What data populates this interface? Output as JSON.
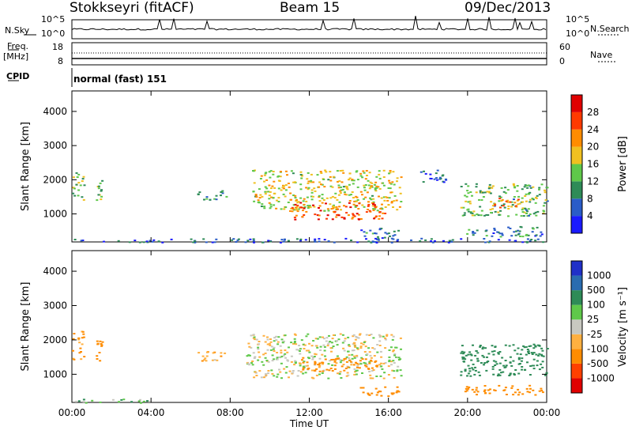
{
  "header": {
    "station": "Stokkseyri (fitACF)",
    "beam": "Beam 15",
    "date": "09/Dec/2013"
  },
  "summary": {
    "nsky_label": "N.Sky",
    "nsky_ticks": [
      "10^5",
      "10^0"
    ],
    "nsearch_label": "N.Search",
    "nsearch_ticks": [
      "10^5",
      "10^0"
    ],
    "freq_label": "Freq.",
    "freq_unit": "[MHz]",
    "freq_ticks": [
      "18",
      "8"
    ],
    "nave_label": "Nave",
    "nave_ticks": [
      "60",
      "0"
    ],
    "cpid_label": "CPID",
    "cpid_value": "normal (fast) 151"
  },
  "chart_data": [
    {
      "type": "heatmap",
      "title": "",
      "panel": "power",
      "xlabel": "",
      "ylabel": "Slant Range [km]",
      "x_ticks": [
        "00:00",
        "04:00",
        "08:00",
        "12:00",
        "16:00",
        "20:00",
        "00:00"
      ],
      "x_range_hours": [
        0,
        24
      ],
      "y_ticks": [
        1000,
        2000,
        3000,
        4000
      ],
      "ylim": [
        180,
        4600
      ],
      "colorbar": {
        "label": "Power [dB]",
        "ticks": [
          "4",
          "8",
          "12",
          "16",
          "20",
          "24",
          "28"
        ],
        "range": [
          0,
          30
        ],
        "colors": [
          "#1a1aff",
          "#2a5cc8",
          "#2e8b57",
          "#5fc84a",
          "#f0c020",
          "#ff8c00",
          "#ff3a00",
          "#e00000"
        ]
      },
      "regions": [
        {
          "t": [
            0.0,
            0.6
          ],
          "r": [
            1400,
            2300
          ],
          "level": 12
        },
        {
          "t": [
            1.2,
            1.5
          ],
          "r": [
            1400,
            2100
          ],
          "level": 14
        },
        {
          "t": [
            6.3,
            7.8
          ],
          "r": [
            1400,
            1700
          ],
          "level": 10
        },
        {
          "t": [
            9.1,
            16.6
          ],
          "r": [
            1100,
            2300
          ],
          "level": 16
        },
        {
          "t": [
            11.0,
            15.8
          ],
          "r": [
            850,
            1350
          ],
          "level": 24
        },
        {
          "t": [
            14.5,
            16.5
          ],
          "r": [
            300,
            600
          ],
          "level": 8
        },
        {
          "t": [
            17.6,
            19.0
          ],
          "r": [
            1900,
            2300
          ],
          "level": 6
        },
        {
          "t": [
            19.6,
            24.0
          ],
          "r": [
            950,
            1900
          ],
          "level": 12
        },
        {
          "t": [
            21.2,
            22.6
          ],
          "r": [
            1200,
            1500
          ],
          "level": 22
        },
        {
          "t": [
            19.8,
            23.8
          ],
          "r": [
            350,
            650
          ],
          "level": 8
        },
        {
          "t": [
            0.0,
            24.0
          ],
          "r": [
            180,
            300
          ],
          "level": 6
        }
      ]
    },
    {
      "type": "heatmap",
      "title": "",
      "panel": "velocity",
      "xlabel": "Time UT",
      "ylabel": "Slant Range [km]",
      "x_ticks": [
        "00:00",
        "04:00",
        "08:00",
        "12:00",
        "16:00",
        "20:00",
        "00:00"
      ],
      "x_range_hours": [
        0,
        24
      ],
      "y_ticks": [
        1000,
        2000,
        3000,
        4000
      ],
      "ylim": [
        180,
        4600
      ],
      "colorbar": {
        "label": "Velocity [m s⁻¹]",
        "ticks": [
          "1000",
          "500",
          "100",
          "25",
          "-25",
          "-100",
          "-500",
          "-1000"
        ],
        "colors": [
          "#2030c8",
          "#2a6cb0",
          "#2e8b57",
          "#5fc84a",
          "#c8c8c0",
          "#ffb040",
          "#ff8c00",
          "#ff4000",
          "#e00000"
        ]
      },
      "regions": [
        {
          "t": [
            0.0,
            0.6
          ],
          "r": [
            1400,
            2300
          ],
          "level": -150
        },
        {
          "t": [
            1.2,
            1.5
          ],
          "r": [
            1400,
            2100
          ],
          "level": -200
        },
        {
          "t": [
            6.3,
            7.8
          ],
          "r": [
            1400,
            1700
          ],
          "level": -100
        },
        {
          "t": [
            8.8,
            16.6
          ],
          "r": [
            900,
            2200
          ],
          "level": 0
        },
        {
          "t": [
            11.5,
            15.5
          ],
          "r": [
            1100,
            1500
          ],
          "level": -300
        },
        {
          "t": [
            14.5,
            16.5
          ],
          "r": [
            350,
            650
          ],
          "level": -400
        },
        {
          "t": [
            19.6,
            24.0
          ],
          "r": [
            950,
            1900
          ],
          "level": 250
        },
        {
          "t": [
            19.8,
            23.8
          ],
          "r": [
            400,
            700
          ],
          "level": -400
        },
        {
          "t": [
            0.0,
            4.0
          ],
          "r": [
            180,
            300
          ],
          "level": 60
        }
      ]
    }
  ]
}
